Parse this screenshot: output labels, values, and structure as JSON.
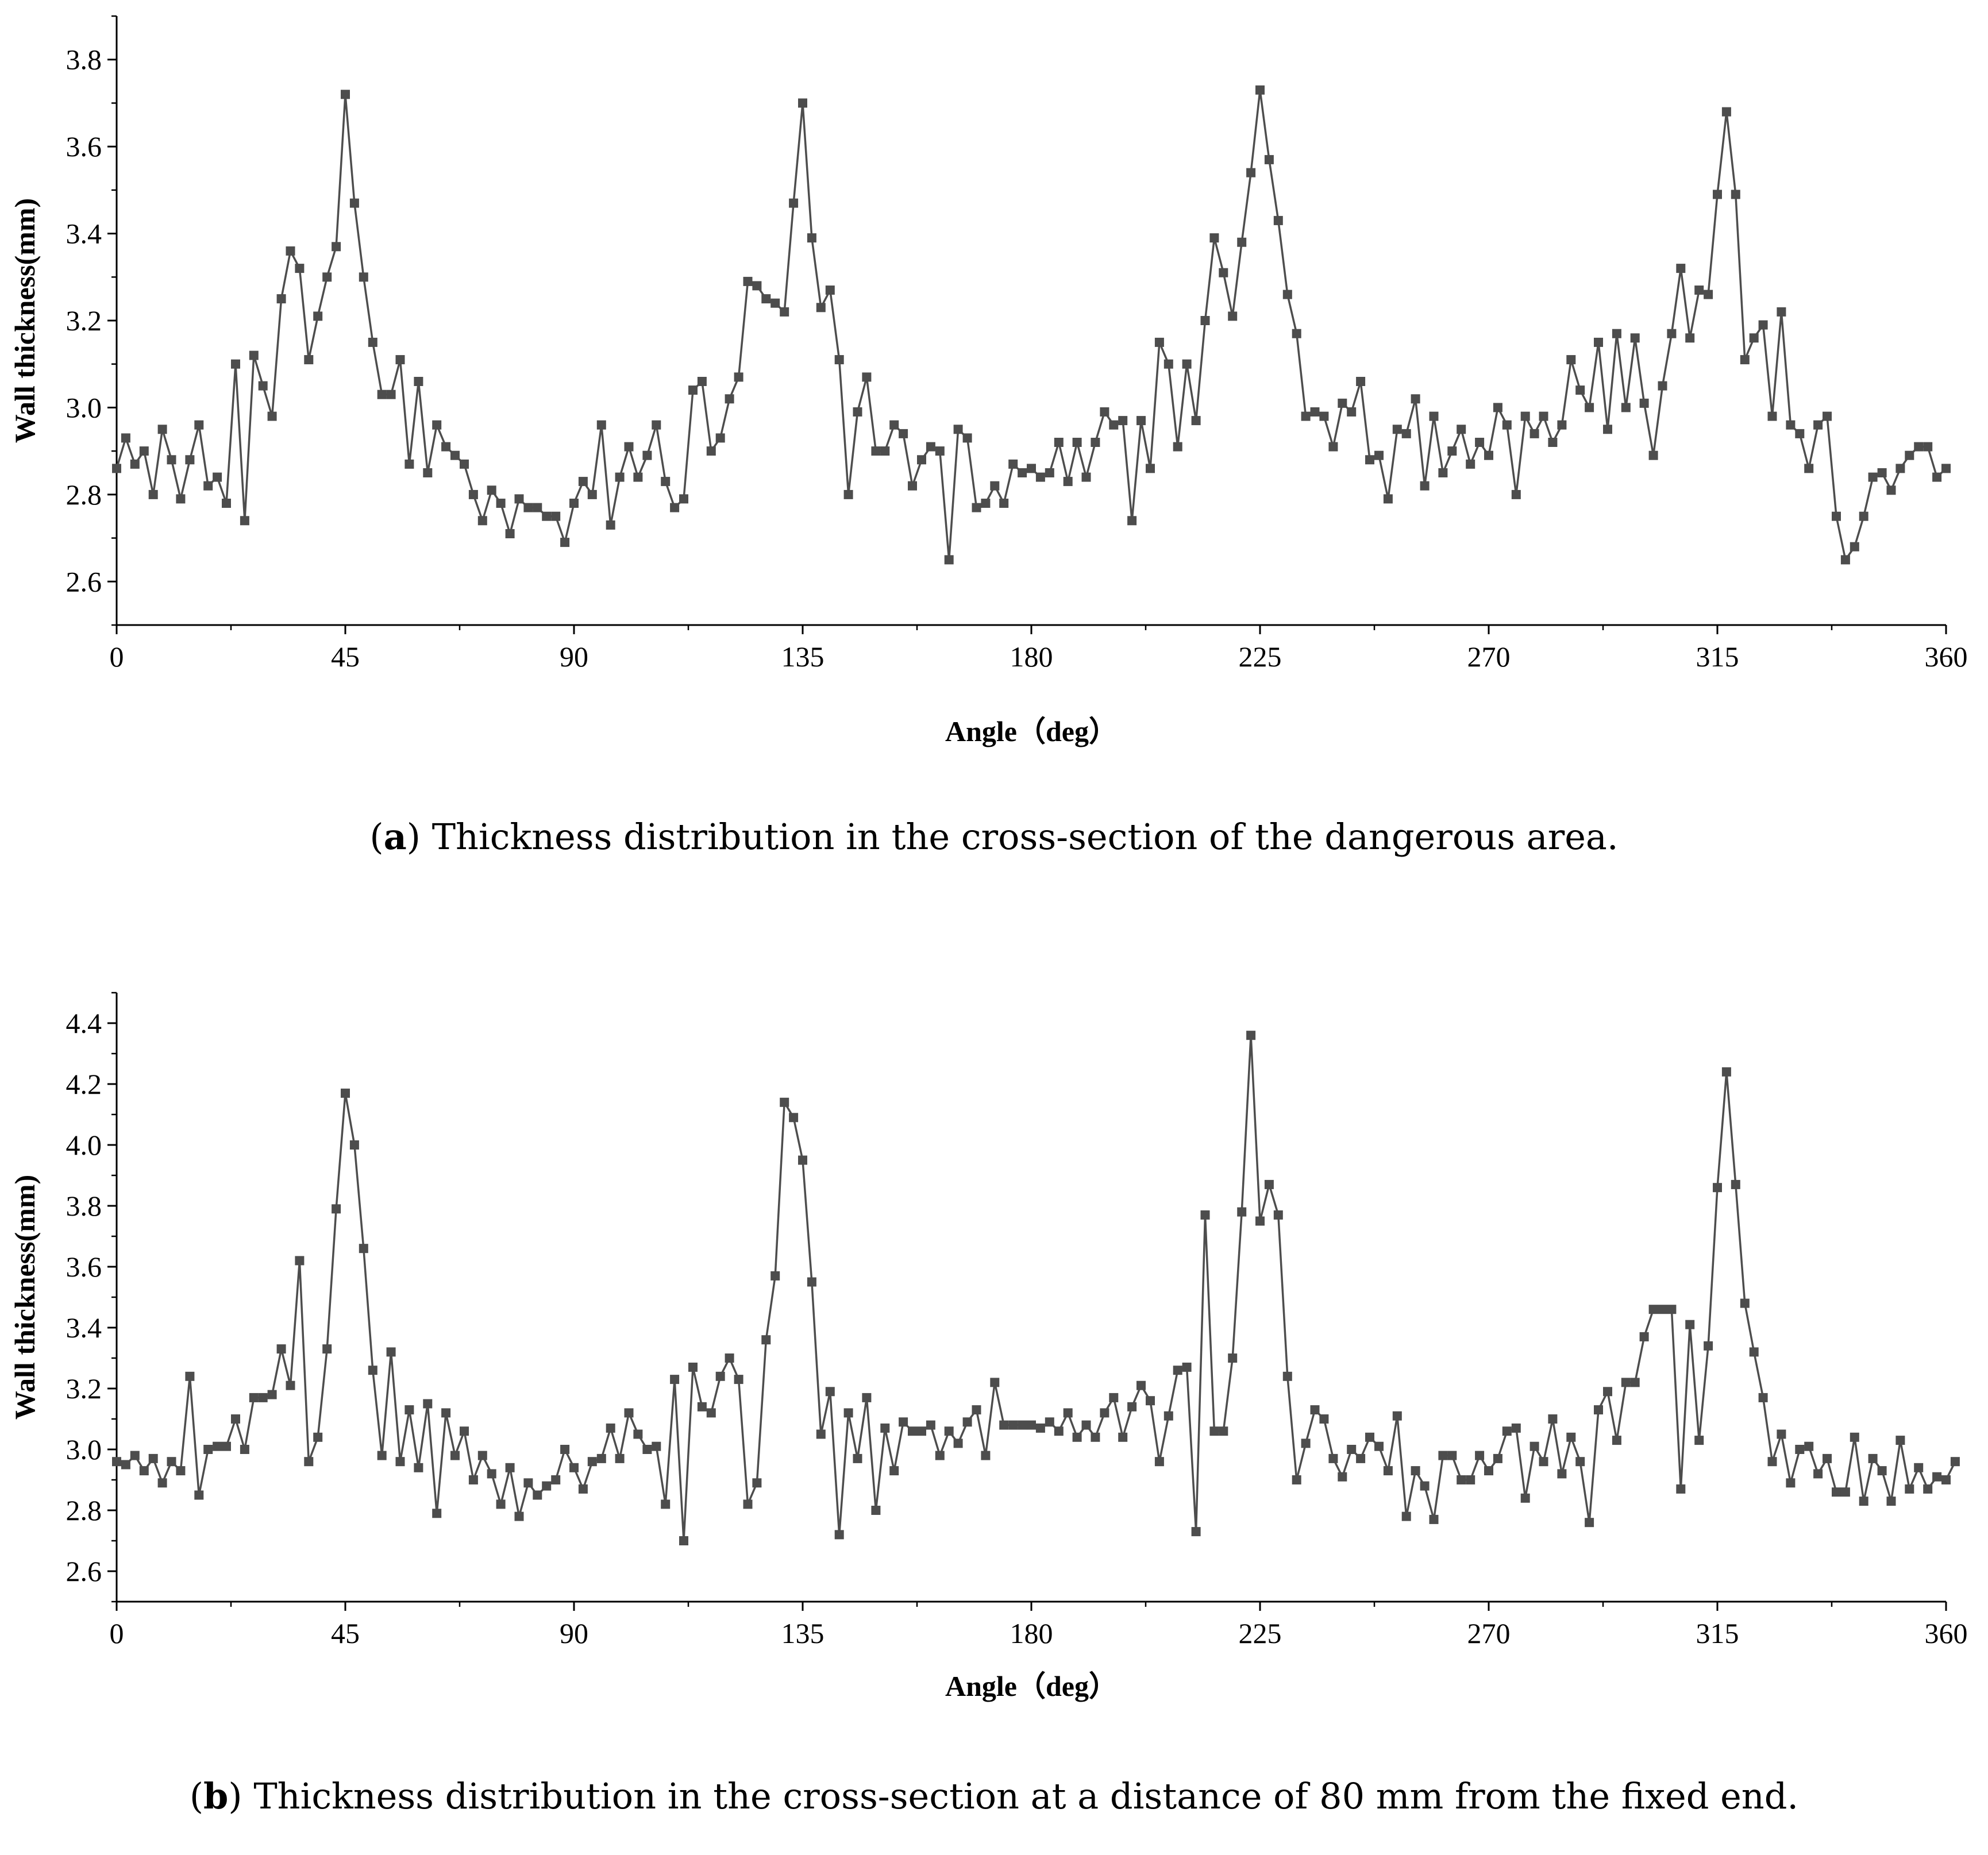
{
  "chart_data": [
    {
      "type": "line",
      "panel_label": "a",
      "caption": "Thickness distribution in the cross-section of the dangerous area.",
      "xlabel": "Angle（deg）",
      "ylabel": "Wall thickness(mm)",
      "xlim": [
        0,
        360
      ],
      "ylim": [
        2.5,
        3.9
      ],
      "xticks": [
        "0",
        "45",
        "90",
        "135",
        "180",
        "225",
        "270",
        "315",
        "360"
      ],
      "yticks": [
        "2.6",
        "2.8",
        "3.0",
        "3.2",
        "3.4",
        "3.6",
        "3.8"
      ],
      "marker": "square",
      "color": "#4d4d4d",
      "x_start": 0,
      "x_step": 1.8,
      "values": [
        2.86,
        2.93,
        2.87,
        2.9,
        2.8,
        2.95,
        2.88,
        2.79,
        2.88,
        2.96,
        2.82,
        2.84,
        2.78,
        3.1,
        2.74,
        3.12,
        3.05,
        2.98,
        3.25,
        3.36,
        3.32,
        3.11,
        3.21,
        3.3,
        3.37,
        3.72,
        3.47,
        3.3,
        3.15,
        3.03,
        3.03,
        3.11,
        2.87,
        3.06,
        2.85,
        2.96,
        2.91,
        2.89,
        2.87,
        2.8,
        2.74,
        2.81,
        2.78,
        2.71,
        2.79,
        2.77,
        2.77,
        2.75,
        2.75,
        2.69,
        2.78,
        2.83,
        2.8,
        2.96,
        2.73,
        2.84,
        2.91,
        2.84,
        2.89,
        2.96,
        2.83,
        2.77,
        2.79,
        3.04,
        3.06,
        2.9,
        2.93,
        3.02,
        3.07,
        3.29,
        3.28,
        3.25,
        3.24,
        3.22,
        3.47,
        3.7,
        3.39,
        3.23,
        3.27,
        3.11,
        2.8,
        2.99,
        3.07,
        2.9,
        2.9,
        2.96,
        2.94,
        2.82,
        2.88,
        2.91,
        2.9,
        2.65,
        2.95,
        2.93,
        2.77,
        2.78,
        2.82,
        2.78,
        2.87,
        2.85,
        2.86,
        2.84,
        2.85,
        2.92,
        2.83,
        2.92,
        2.84,
        2.92,
        2.99,
        2.96,
        2.97,
        2.74,
        2.97,
        2.86,
        3.15,
        3.1,
        2.91,
        3.1,
        2.97,
        3.2,
        3.39,
        3.31,
        3.21,
        3.38,
        3.54,
        3.73,
        3.57,
        3.43,
        3.26,
        3.17,
        2.98,
        2.99,
        2.98,
        2.91,
        3.01,
        2.99,
        3.06,
        2.88,
        2.89,
        2.79,
        2.95,
        2.94,
        3.02,
        2.82,
        2.98,
        2.85,
        2.9,
        2.95,
        2.87,
        2.92,
        2.89,
        3.0,
        2.96,
        2.8,
        2.98,
        2.94,
        2.98,
        2.92,
        2.96,
        3.11,
        3.04,
        3.0,
        3.15,
        2.95,
        3.17,
        3.0,
        3.16,
        3.01,
        2.89,
        3.05,
        3.17,
        3.32,
        3.16,
        3.27,
        3.26,
        3.49,
        3.68,
        3.49,
        3.11,
        3.16,
        3.19,
        2.98,
        3.22,
        2.96,
        2.94,
        2.86,
        2.96,
        2.98,
        2.75,
        2.65,
        2.68,
        2.75,
        2.84,
        2.85,
        2.81,
        2.86,
        2.89,
        2.91,
        2.91,
        2.84,
        2.86
      ]
    },
    {
      "type": "line",
      "panel_label": "b",
      "caption": "Thickness distribution in the cross-section at a distance of 80 mm from the fixed end.",
      "xlabel": "Angle（deg）",
      "ylabel": "Wall thickness(mm)",
      "xlim": [
        0,
        360
      ],
      "ylim": [
        2.5,
        4.5
      ],
      "xticks": [
        "0",
        "45",
        "90",
        "135",
        "180",
        "225",
        "270",
        "315",
        "360"
      ],
      "yticks": [
        "2.6",
        "2.8",
        "3.0",
        "3.2",
        "3.4",
        "3.6",
        "3.8",
        "4.0",
        "4.2",
        "4.4"
      ],
      "marker": "square",
      "color": "#4d4d4d",
      "x_start": 0,
      "x_step": 1.8,
      "values": [
        2.96,
        2.95,
        2.98,
        2.93,
        2.97,
        2.89,
        2.96,
        2.93,
        3.24,
        2.85,
        3.0,
        3.01,
        3.01,
        3.1,
        3.0,
        3.17,
        3.17,
        3.18,
        3.33,
        3.21,
        3.62,
        2.96,
        3.04,
        3.33,
        3.79,
        4.17,
        4.0,
        3.66,
        3.26,
        2.98,
        3.32,
        2.96,
        3.13,
        2.94,
        3.15,
        2.79,
        3.12,
        2.98,
        3.06,
        2.9,
        2.98,
        2.92,
        2.82,
        2.94,
        2.78,
        2.89,
        2.85,
        2.88,
        2.9,
        3.0,
        2.94,
        2.87,
        2.96,
        2.97,
        3.07,
        2.97,
        3.12,
        3.05,
        3.0,
        3.01,
        2.82,
        3.23,
        2.7,
        3.27,
        3.14,
        3.12,
        3.24,
        3.3,
        3.23,
        2.82,
        2.89,
        3.36,
        3.57,
        4.14,
        4.09,
        3.95,
        3.55,
        3.05,
        3.19,
        2.72,
        3.12,
        2.97,
        3.17,
        2.8,
        3.07,
        2.93,
        3.09,
        3.06,
        3.06,
        3.08,
        2.98,
        3.06,
        3.02,
        3.09,
        3.13,
        2.98,
        3.22,
        3.08,
        3.08,
        3.08,
        3.08,
        3.07,
        3.09,
        3.06,
        3.12,
        3.04,
        3.08,
        3.04,
        3.12,
        3.17,
        3.04,
        3.14,
        3.21,
        3.16,
        2.96,
        3.11,
        3.26,
        3.27,
        2.73,
        3.77,
        3.06,
        3.06,
        3.3,
        3.78,
        4.36,
        3.75,
        3.87,
        3.77,
        3.24,
        2.9,
        3.02,
        3.13,
        3.1,
        2.97,
        2.91,
        3.0,
        2.97,
        3.04,
        3.01,
        2.93,
        3.11,
        2.78,
        2.93,
        2.88,
        2.77,
        2.98,
        2.98,
        2.9,
        2.9,
        2.98,
        2.93,
        2.97,
        3.06,
        3.07,
        2.84,
        3.01,
        2.96,
        3.1,
        2.92,
        3.04,
        2.96,
        2.76,
        3.13,
        3.19,
        3.03,
        3.22,
        3.22,
        3.37,
        3.46,
        3.46,
        3.46,
        2.87,
        3.41,
        3.03,
        3.34,
        3.86,
        4.24,
        3.87,
        3.48,
        3.32,
        3.17,
        2.96,
        3.05,
        2.89,
        3.0,
        3.01,
        2.92,
        2.97,
        2.86,
        2.86,
        3.04,
        2.83,
        2.97,
        2.93,
        2.83,
        3.03,
        2.87,
        2.94,
        2.87,
        2.91,
        2.9,
        2.96
      ]
    }
  ]
}
